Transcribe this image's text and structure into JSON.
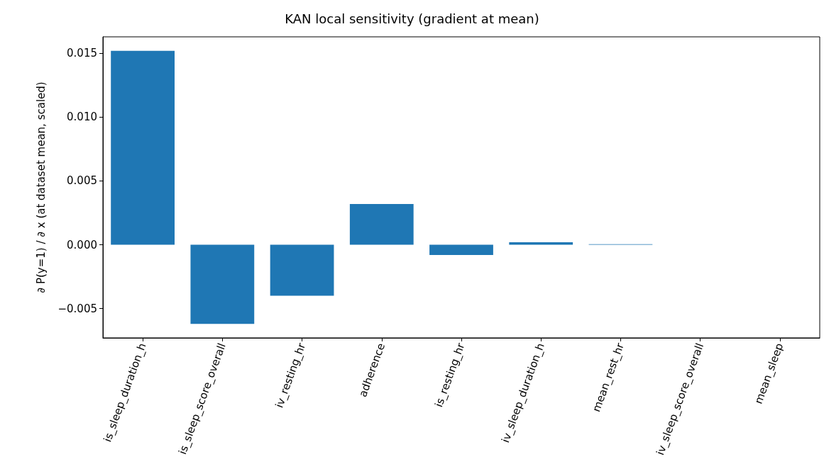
{
  "chart_data": {
    "type": "bar",
    "title": "KAN local sensitivity (gradient at mean)",
    "ylabel": "∂ P(y=1) / ∂ x (at dataset mean, scaled)",
    "categories": [
      "is_sleep_duration_h",
      "is_sleep_score_overall",
      "iv_resting_hr",
      "adherence",
      "is_resting_hr",
      "iv_sleep_duration_h",
      "mean_rest_hr",
      "iv_sleep_score_overall",
      "mean_sleep"
    ],
    "values": [
      0.0152,
      -0.0062,
      -0.004,
      0.0032,
      -0.0008,
      0.0002,
      5e-05,
      0,
      0
    ],
    "color": "#1f77b4",
    "ylim": [
      -0.0073,
      0.0163
    ],
    "yticks": [
      {
        "value": -0.005,
        "label": "−0.005"
      },
      {
        "value": 0,
        "label": "0.000"
      },
      {
        "value": 0.005,
        "label": "0.005"
      },
      {
        "value": 0.01,
        "label": "0.010"
      },
      {
        "value": 0.015,
        "label": "0.015"
      }
    ],
    "grid": false
  }
}
